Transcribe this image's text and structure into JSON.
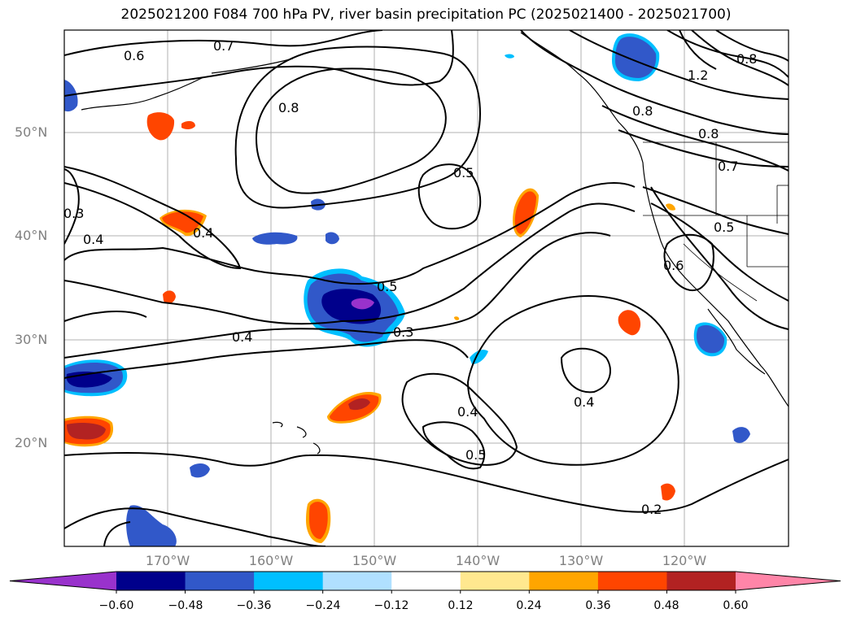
{
  "title": "2025021200 F084 700 hPa PV, river basin precipitation PC (2025021400 - 2025021700)",
  "lat_labels": [
    "50°N",
    "40°N",
    "30°N",
    "20°N"
  ],
  "lon_labels": [
    "170°W",
    "160°W",
    "150°W",
    "140°W",
    "130°W",
    "120°W"
  ],
  "contour_labels": [
    "0.7",
    "0.6",
    "0.8",
    "0.8",
    "0.8",
    "1.2",
    "0.8",
    "0.7",
    "0.5",
    "0.5",
    "0.3",
    "0.4",
    "0.4",
    "0.5",
    "0.3",
    "0.4",
    "0.6",
    "0.4",
    "0.5",
    "0.4",
    "0.2"
  ],
  "colorbar": {
    "ticks": [
      "−0.60",
      "−0.48",
      "−0.36",
      "−0.24",
      "−0.12",
      "0.12",
      "0.24",
      "0.36",
      "0.48",
      "0.60"
    ],
    "colors": {
      "under": "#9932cc",
      "bins": [
        "#00008b",
        "#3158c9",
        "#00bfff",
        "#b0e0ff",
        "#ffffff",
        "#ffe88f",
        "#ffa500",
        "#ff4500",
        "#b22222"
      ],
      "over": "#ff85a8"
    }
  }
}
